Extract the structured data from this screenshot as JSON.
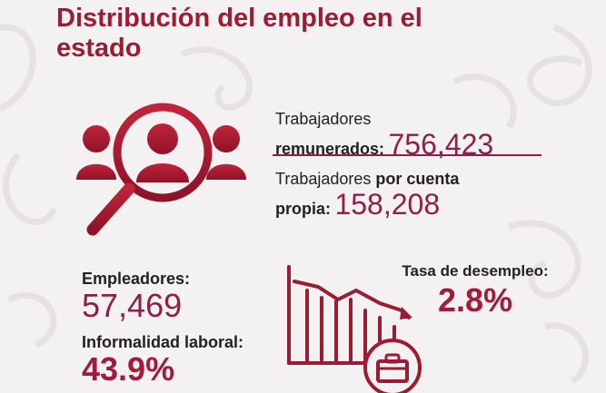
{
  "title": "Distribución del empleo en el estado",
  "remunerados": {
    "label_line1": "Trabajadores",
    "label_line2": "remunerados:",
    "value": "756,423"
  },
  "cuenta_propia": {
    "label_line1_regular": "Trabajadores ",
    "label_line1_bold": "por cuenta",
    "label_line2": "propia:",
    "value": "158,208"
  },
  "empleadores": {
    "label": "Empleadores:",
    "value": "57,469"
  },
  "informalidad": {
    "label": "Informalidad laboral:",
    "value": "43.9%"
  },
  "desempleo": {
    "label": "Tasa de desempleo:",
    "value": "2.8%"
  },
  "colors": {
    "accent": "#9b1c33",
    "accent_alt": "#8f1f46",
    "background": "#f3f1f1"
  },
  "icons": [
    "people-magnifier-icon",
    "declining-chart-briefcase-icon"
  ]
}
